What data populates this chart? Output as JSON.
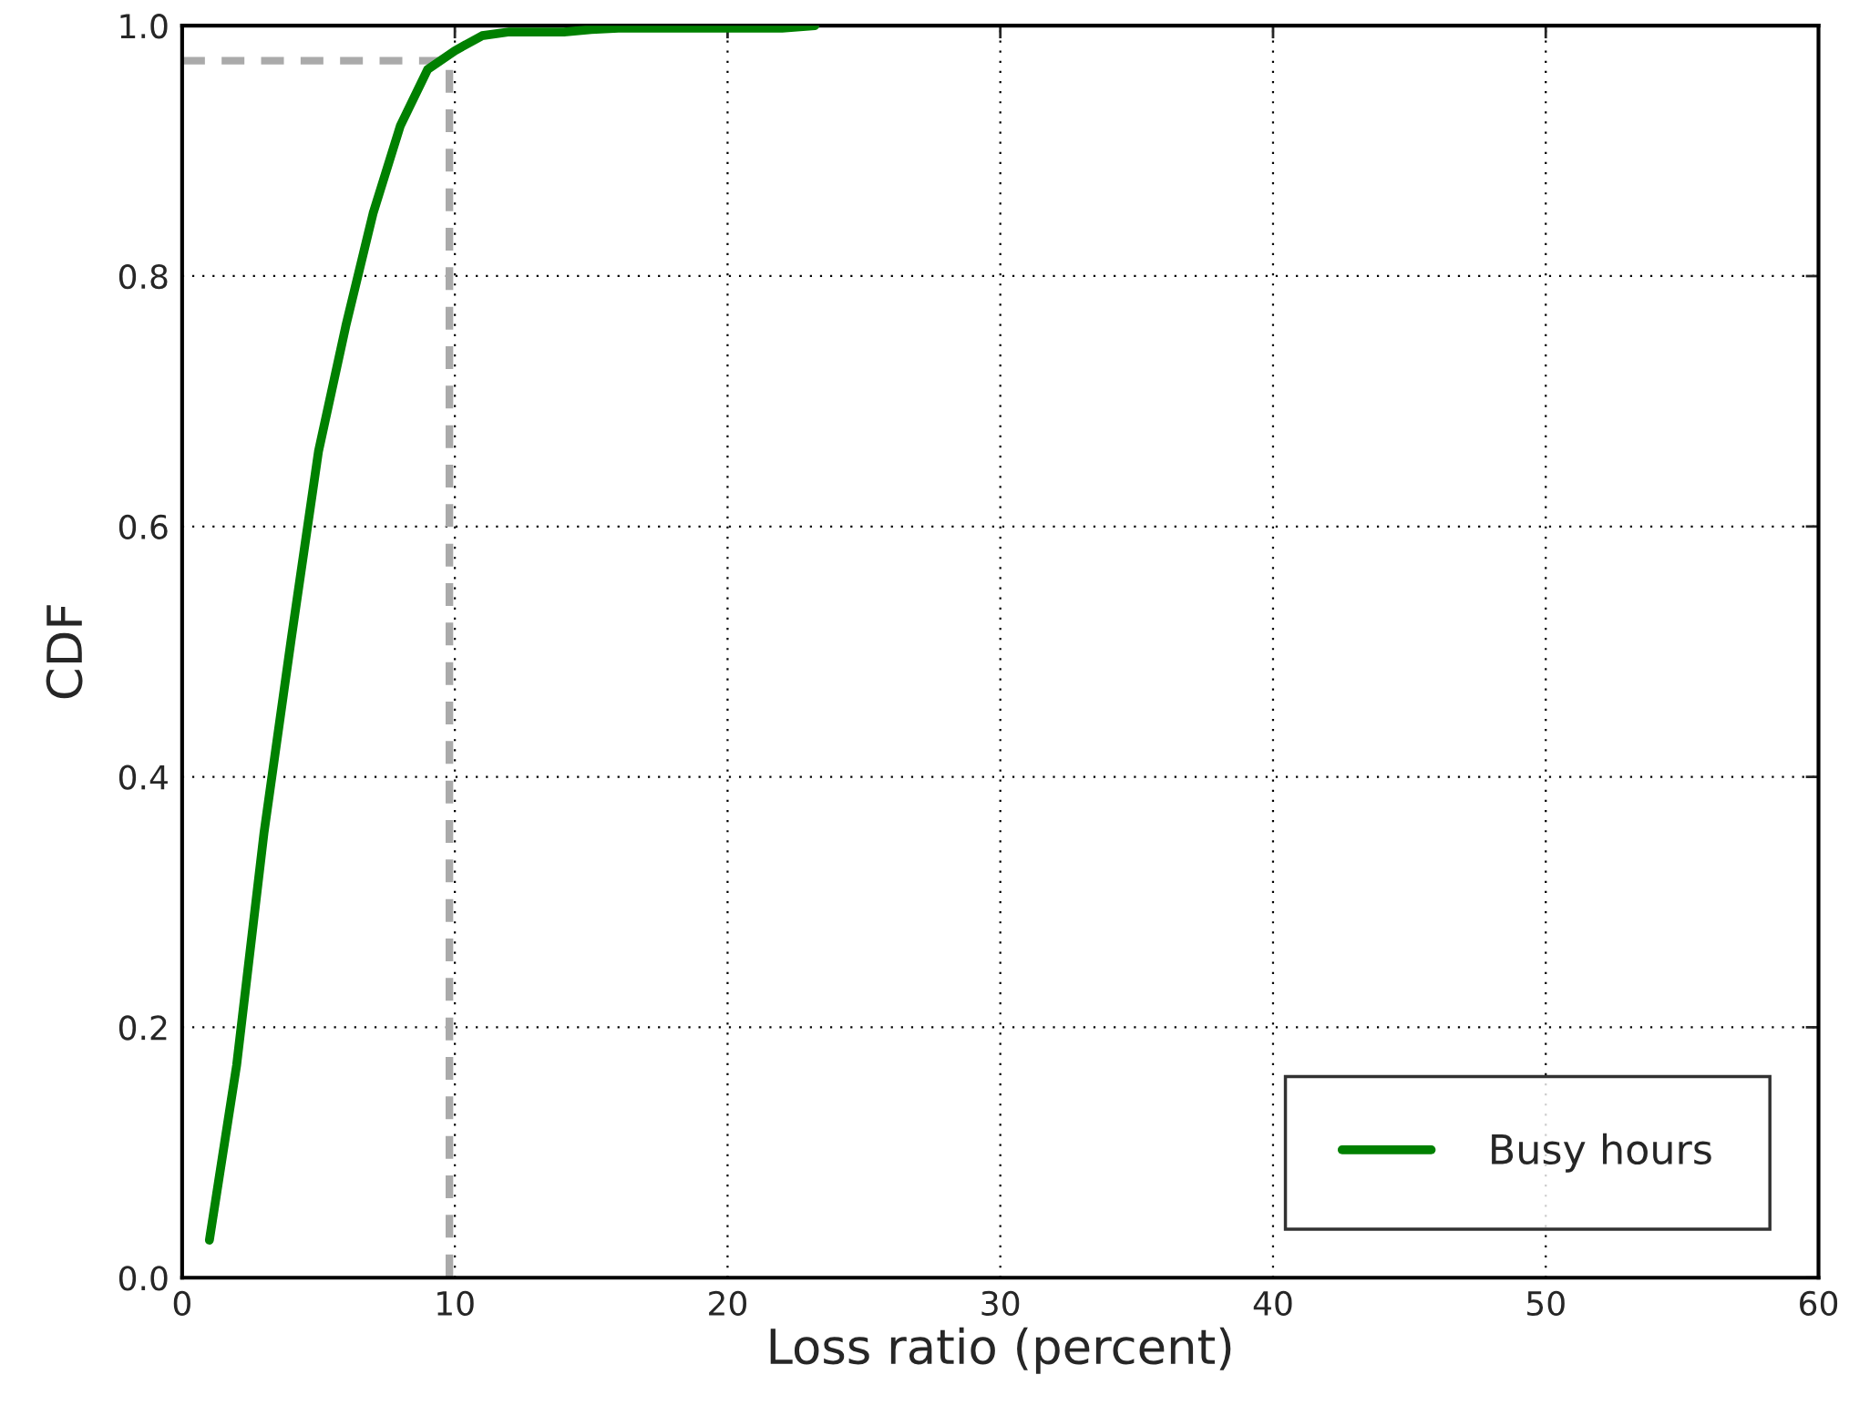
{
  "chart_data": {
    "type": "line",
    "xlabel": "Loss ratio (percent)",
    "ylabel": "CDF",
    "series": [
      {
        "name": "Busy hours",
        "color": "#008000",
        "line_style": "solid",
        "x": [
          1,
          2,
          3,
          4,
          5,
          6,
          7,
          8,
          9,
          10,
          11,
          12,
          14,
          15,
          16,
          19,
          22,
          23.2
        ],
        "values": [
          0.03,
          0.17,
          0.355,
          0.51,
          0.66,
          0.76,
          0.85,
          0.92,
          0.965,
          0.98,
          0.992,
          0.995,
          0.995,
          0.997,
          0.998,
          0.998,
          0.998,
          1.0
        ]
      },
      {
        "color": "#aaaaaa",
        "line_style": "dashed",
        "x": [
          0,
          9.8,
          9.8
        ],
        "values": [
          0.972,
          0.972,
          0
        ]
      }
    ],
    "xlim": [
      0,
      60
    ],
    "xticks": [
      0,
      10,
      20,
      30,
      40,
      50,
      60
    ],
    "ylim": [
      0,
      1.0
    ],
    "yticks": [
      {
        "value": 0,
        "label": "0.0"
      },
      {
        "value": 0.2,
        "label": "0.2"
      },
      {
        "value": 0.4,
        "label": "0.4"
      },
      {
        "value": 0.6,
        "label": "0.6"
      },
      {
        "value": 0.8,
        "label": "0.8"
      },
      {
        "value": 1.0,
        "label": "1.0"
      }
    ],
    "grid": true,
    "legend": "lower right",
    "marker": "none"
  }
}
